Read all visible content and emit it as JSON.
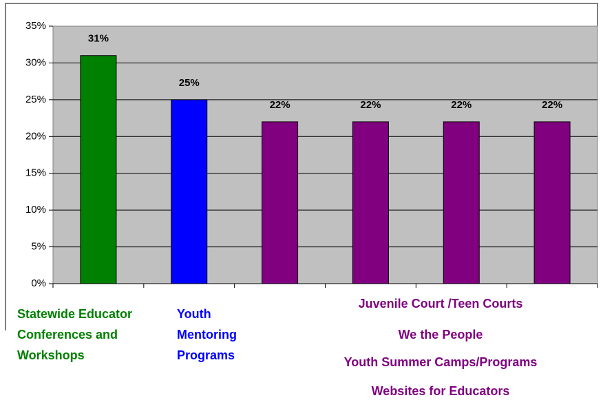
{
  "chart_data": {
    "type": "bar",
    "categories": [
      "Statewide Educator Conferences and Workshops",
      "Youth Mentoring Programs",
      "Juvenile Court /Teen Courts",
      "We the People",
      "Youth Summer Camps/Programs",
      "Websites for Educators"
    ],
    "values": [
      31,
      25,
      22,
      22,
      22,
      22
    ],
    "value_labels": [
      "31%",
      "25%",
      "22%",
      "22%",
      "22%",
      "22%"
    ],
    "colors": [
      "#008000",
      "#0000ff",
      "#800080",
      "#800080",
      "#800080",
      "#800080"
    ],
    "ylim": [
      0,
      35
    ],
    "yticks": [
      {
        "value": 0,
        "label": "0%"
      },
      {
        "value": 5,
        "label": "5%"
      },
      {
        "value": 10,
        "label": "10%"
      },
      {
        "value": 15,
        "label": "15%"
      },
      {
        "value": 20,
        "label": "20%"
      },
      {
        "value": 25,
        "label": "25%"
      },
      {
        "value": 30,
        "label": "30%"
      },
      {
        "value": 35,
        "label": "35%"
      }
    ],
    "grid": true
  }
}
